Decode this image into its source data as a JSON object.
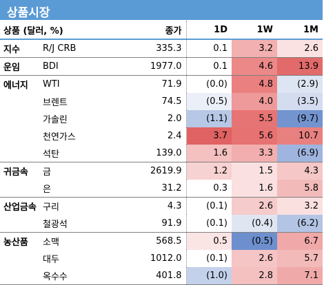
{
  "title": "상품시장",
  "headers": {
    "label": "상품 (달러, %)",
    "close": "종가",
    "d1": "1D",
    "w1": "1W",
    "m1": "1M"
  },
  "rows": [
    {
      "cat": "지수",
      "name": "R/J CRB",
      "close": "335.3",
      "d1": "0.1",
      "w1": "3.2",
      "m1": "2.6",
      "colors": [
        "#ffffff",
        "#f2b0b0",
        "#fbe2e2"
      ],
      "end": true
    },
    {
      "cat": "운임",
      "name": "BDI",
      "close": "1977.0",
      "d1": "0.1",
      "w1": "4.6",
      "m1": "13.9",
      "colors": [
        "#ffffff",
        "#ec8888",
        "#e26a6a"
      ],
      "end": true
    },
    {
      "cat": "에너지",
      "name": "WTI",
      "close": "71.9",
      "d1": "(0.0)",
      "w1": "4.8",
      "m1": "(2.9)",
      "colors": [
        "#ffffff",
        "#ea8080",
        "#dde5f2"
      ],
      "end": false
    },
    {
      "cat": "",
      "name": "브렌트",
      "close": "74.5",
      "d1": "(0.5)",
      "w1": "4.0",
      "m1": "(3.5)",
      "colors": [
        "#ebeff7",
        "#ef9a9a",
        "#d4ddef"
      ],
      "end": false
    },
    {
      "cat": "",
      "name": "가솔린",
      "close": "2.0",
      "d1": "(1.1)",
      "w1": "5.5",
      "m1": "(9.7)",
      "colors": [
        "#b7c8e6",
        "#e77474",
        "#7394cf"
      ],
      "end": false
    },
    {
      "cat": "",
      "name": "천연가스",
      "close": "2.4",
      "d1": "3.7",
      "w1": "5.6",
      "m1": "10.7",
      "colors": [
        "#e06262",
        "#e67272",
        "#e98080"
      ],
      "end": false
    },
    {
      "cat": "",
      "name": "석탄",
      "close": "139.0",
      "d1": "1.6",
      "w1": "3.3",
      "m1": "(6.9)",
      "colors": [
        "#f4c0c0",
        "#f2aeae",
        "#9fb4de"
      ],
      "end": true
    },
    {
      "cat": "귀금속",
      "name": "금",
      "close": "2619.9",
      "d1": "1.2",
      "w1": "1.5",
      "m1": "4.3",
      "colors": [
        "#f7d2d2",
        "#fae0e0",
        "#f5c7c7"
      ],
      "end": false
    },
    {
      "cat": "",
      "name": "은",
      "close": "31.2",
      "d1": "0.3",
      "w1": "1.6",
      "m1": "5.8",
      "colors": [
        "#ffffff",
        "#fae0e0",
        "#f3baba"
      ],
      "end": true
    },
    {
      "cat": "산업금속",
      "name": "구리",
      "close": "4.3",
      "d1": "(0.1)",
      "w1": "2.6",
      "m1": "3.2",
      "colors": [
        "#ffffff",
        "#f6cbcb",
        "#fbe0e0"
      ],
      "end": false
    },
    {
      "cat": "",
      "name": "철광석",
      "close": "91.9",
      "d1": "(0.1)",
      "w1": "(0.4)",
      "m1": "(6.2)",
      "colors": [
        "#ffffff",
        "#dfe6f2",
        "#b4c4e4"
      ],
      "end": true
    },
    {
      "cat": "농산품",
      "name": "소맥",
      "close": "568.5",
      "d1": "0.5",
      "w1": "(0.5)",
      "m1": "6.7",
      "colors": [
        "#fbe4e4",
        "#6d8fcd",
        "#f0a8a8"
      ],
      "end": false
    },
    {
      "cat": "",
      "name": "대두",
      "close": "1012.0",
      "d1": "(0.1)",
      "w1": "2.6",
      "m1": "5.7",
      "colors": [
        "#ffffff",
        "#f5c4c4",
        "#f3baba"
      ],
      "end": false
    },
    {
      "cat": "",
      "name": "옥수수",
      "close": "401.8",
      "d1": "(1.0)",
      "w1": "2.8",
      "m1": "7.1",
      "colors": [
        "#c3d1ea",
        "#f4c0c0",
        "#f0a9a9"
      ],
      "end": true
    }
  ]
}
